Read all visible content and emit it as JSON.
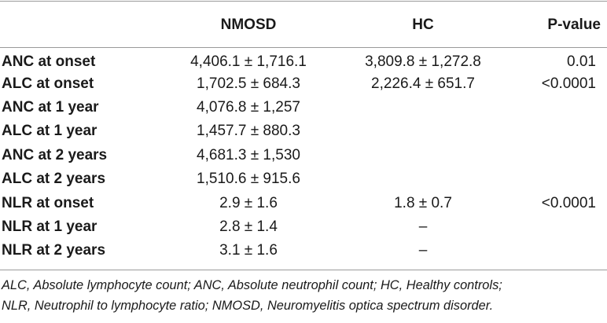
{
  "table": {
    "headers": [
      "",
      "NMOSD",
      "HC",
      "P-value"
    ],
    "rows": [
      {
        "label": "ANC at onset",
        "nmosd": "4,406.1 ± 1,716.1",
        "hc": "3,809.8 ± 1,272.8",
        "p": "0.01"
      },
      {
        "label": "ALC at onset",
        "nmosd": "1,702.5 ± 684.3",
        "hc": "2,226.4 ± 651.7",
        "p": "<0.0001"
      },
      {
        "label": "ANC at 1 year",
        "nmosd": "4,076.8 ± 1,257",
        "hc": "",
        "p": ""
      },
      {
        "label": "ALC at 1 year",
        "nmosd": "1,457.7 ± 880.3",
        "hc": "",
        "p": ""
      },
      {
        "label": "ANC at 2 years",
        "nmosd": "4,681.3 ± 1,530",
        "hc": "",
        "p": ""
      },
      {
        "label": "ALC at 2 years",
        "nmosd": "1,510.6 ± 915.6",
        "hc": "",
        "p": ""
      },
      {
        "label": "NLR at onset",
        "nmosd": "2.9 ± 1.6",
        "hc": "1.8 ± 0.7",
        "p": "<0.0001"
      },
      {
        "label": "NLR at 1 year",
        "nmosd": "2.8 ± 1.4",
        "hc": "–",
        "p": ""
      },
      {
        "label": "NLR at 2 years",
        "nmosd": "3.1 ± 1.6",
        "hc": "–",
        "p": ""
      }
    ]
  },
  "footnote": {
    "line1": "ALC, Absolute lymphocyte count; ANC, Absolute neutrophil count; HC, Healthy controls;",
    "line2": "NLR, Neutrophil to lymphocyte ratio; NMOSD, Neuromyelitis optica spectrum disorder."
  }
}
